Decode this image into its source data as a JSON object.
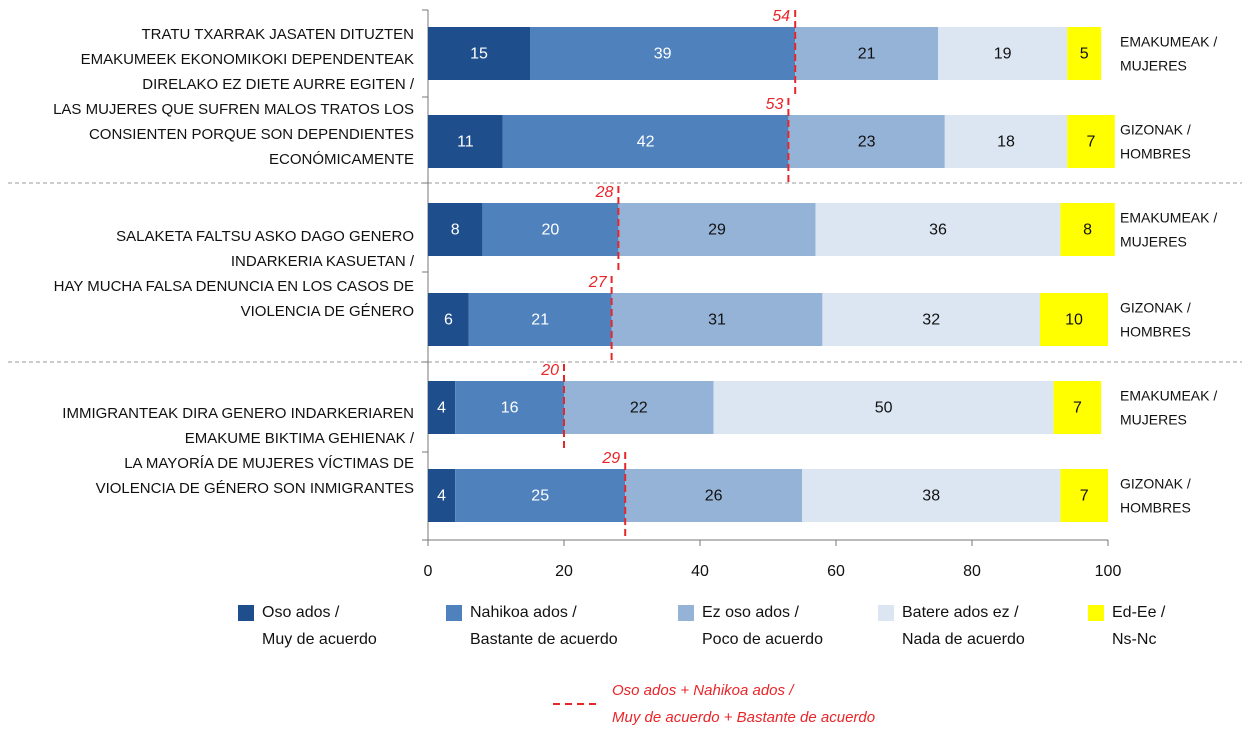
{
  "chart_data": {
    "type": "bar",
    "orientation": "horizontal",
    "stacked": true,
    "groups": [
      {
        "label_lines": [
          "TRATU TXARRAK JASATEN DITUZTEN",
          "EMAKUMEEK EKONOMIKOKI DEPENDENTEAK",
          "DIRELAKO EZ DIETE AURRE EGITEN /",
          "LAS MUJERES QUE SUFREN MALOS TRATOS LOS",
          "CONSIENTEN PORQUE SON DEPENDIENTES",
          "ECONÓMICAMENTE"
        ]
      },
      {
        "label_lines": [
          "SALAKETA FALTSU ASKO DAGO GENERO",
          "INDARKERIA KASUETAN /",
          "HAY MUCHA FALSA DENUNCIA EN LOS CASOS DE",
          "VIOLENCIA DE GÉNERO"
        ]
      },
      {
        "label_lines": [
          "IMMIGRANTEAK DIRA GENERO INDARKERIAREN",
          "EMAKUME BIKTIMA GEHIENAK /",
          "LA MAYORÍA DE MUJERES VÍCTIMAS DE",
          "VIOLENCIA DE GÉNERO SON INMIGRANTES"
        ]
      }
    ],
    "categories": [
      [
        "EMAKUMEAK /",
        "MUJERES"
      ],
      [
        "GIZONAK /",
        "HOMBRES"
      ],
      [
        "EMAKUMEAK /",
        "MUJERES"
      ],
      [
        "GIZONAK /",
        "HOMBRES"
      ],
      [
        "EMAKUMEAK /",
        "MUJERES"
      ],
      [
        "GIZONAK /",
        "HOMBRES"
      ]
    ],
    "series": [
      {
        "name_lines": [
          "Oso ados /",
          "Muy de acuerdo"
        ],
        "color": "#1f4e8c",
        "label_color": "#ffffff",
        "values": [
          15,
          11,
          8,
          6,
          4,
          4
        ]
      },
      {
        "name_lines": [
          "Nahikoa ados /",
          "Bastante de acuerdo"
        ],
        "color": "#4f81bd",
        "label_color": "#ffffff",
        "values": [
          39,
          42,
          20,
          21,
          16,
          25
        ]
      },
      {
        "name_lines": [
          "Ez oso ados /",
          "Poco de acuerdo"
        ],
        "color": "#95b3d7",
        "label_color": "#111111",
        "values": [
          21,
          23,
          29,
          31,
          22,
          26
        ]
      },
      {
        "name_lines": [
          "Batere ados ez /",
          "Nada de acuerdo"
        ],
        "color": "#dce6f2",
        "label_color": "#111111",
        "values": [
          19,
          18,
          36,
          32,
          50,
          38
        ]
      },
      {
        "name_lines": [
          "Ed-Ee /",
          "Ns-Nc"
        ],
        "color": "#ffff00",
        "label_color": "#111111",
        "values": [
          5,
          7,
          8,
          10,
          7,
          7
        ]
      }
    ],
    "reference_line": {
      "type": "line",
      "style": "dashed",
      "color": "#e8262a",
      "name_lines": [
        "Oso ados + Nahikoa ados /",
        "Muy de acuerdo + Bastante de acuerdo"
      ],
      "values": [
        54,
        53,
        28,
        27,
        20,
        29
      ]
    },
    "xlim": [
      0,
      100
    ],
    "xticks": [
      0,
      20,
      40,
      60,
      80,
      100
    ]
  }
}
